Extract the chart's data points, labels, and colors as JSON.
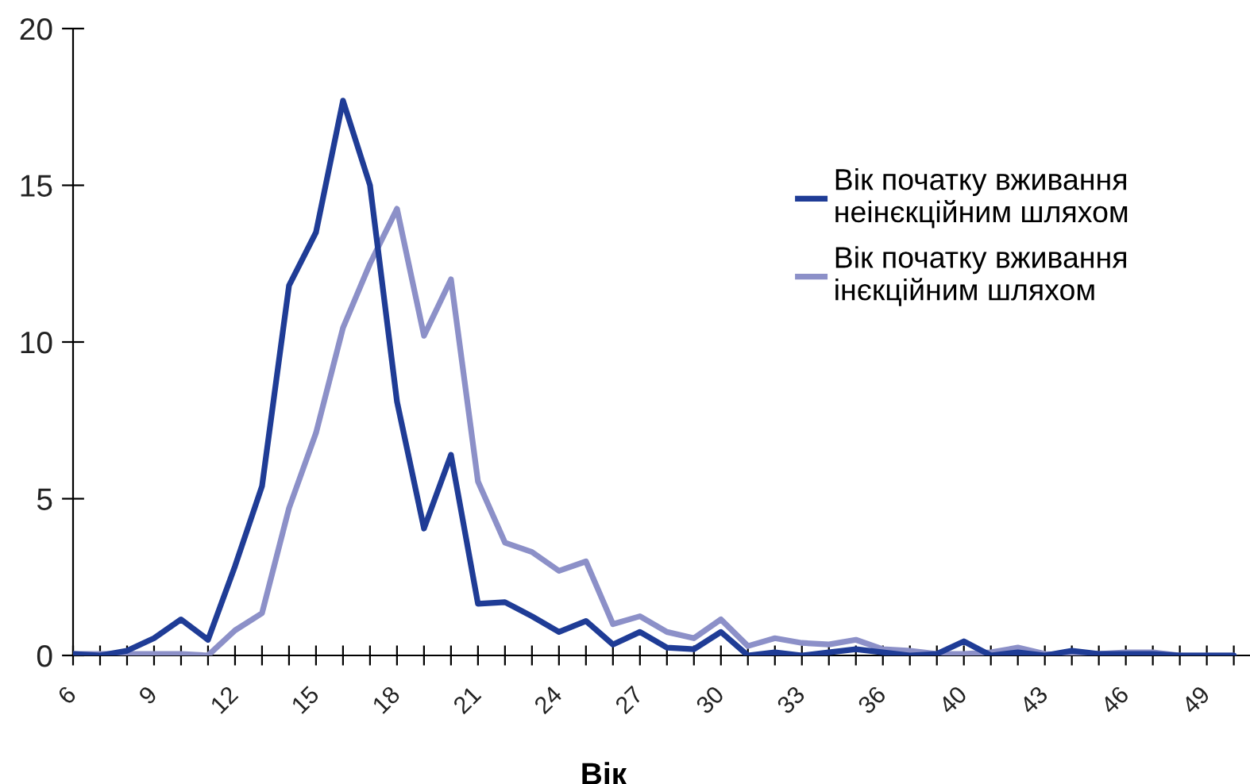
{
  "chart_data": {
    "type": "line",
    "xlabel": "Вік",
    "categories": [
      "6",
      null,
      null,
      "9",
      null,
      null,
      "12",
      null,
      null,
      "15",
      null,
      null,
      "18",
      null,
      null,
      "21",
      null,
      null,
      "24",
      null,
      null,
      "27",
      null,
      null,
      "30",
      null,
      null,
      "33",
      null,
      null,
      "36",
      null,
      null,
      "40",
      null,
      null,
      "43",
      null,
      null,
      "46",
      null,
      null,
      "49",
      null
    ],
    "series": [
      {
        "name": "Вік початку вживання неінєкційним шляхом",
        "color": "#1f3c96",
        "values": [
          0.05,
          0,
          0.15,
          0.55,
          1.15,
          0.5,
          2.85,
          5.4,
          11.8,
          13.5,
          17.7,
          15.0,
          8.1,
          4.05,
          6.4,
          1.65,
          1.7,
          1.25,
          0.75,
          1.1,
          0.35,
          0.75,
          0.25,
          0.2,
          0.75,
          0.0,
          0.1,
          0,
          0.1,
          0.2,
          0.1,
          0,
          0.05,
          0.45,
          0,
          0.1,
          0,
          0.15,
          0.05,
          0.05,
          0.05,
          0,
          0,
          0
        ]
      },
      {
        "name": "Вік початку вживання інєкційним шляхом",
        "color": "#8c90c8",
        "values": [
          0.05,
          0.05,
          0.05,
          0.05,
          0.05,
          0,
          0.8,
          1.35,
          4.7,
          7.1,
          10.45,
          12.5,
          14.25,
          10.2,
          12.0,
          5.55,
          3.6,
          3.3,
          2.7,
          3.0,
          1.0,
          1.25,
          0.75,
          0.55,
          1.15,
          0.3,
          0.55,
          0.4,
          0.35,
          0.5,
          0.2,
          0.15,
          0.05,
          0.05,
          0.1,
          0.25,
          0.05,
          0,
          0.05,
          0.1,
          0.1,
          0,
          0,
          0
        ]
      }
    ],
    "ylim": [
      0,
      20
    ],
    "yticks": [
      0,
      5,
      10,
      15,
      20
    ],
    "grid": false,
    "legend": "top right",
    "marker": "none",
    "line_style": "solid"
  }
}
